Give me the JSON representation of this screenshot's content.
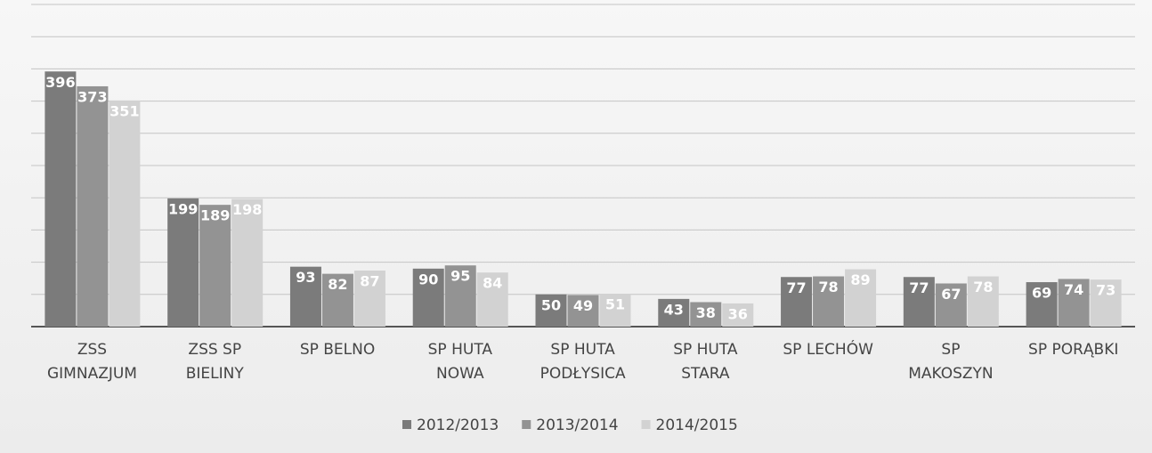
{
  "chart_data": {
    "type": "bar",
    "categories": [
      "ZSS\nGIMNAZJUM",
      "ZSS SP\nBIELINY",
      "SP BELNO",
      "SP HUTA\nNOWA",
      "SP HUTA\nPODŁYSICA",
      "SP HUTA\nSTARA",
      "SP LECHÓW",
      "SP\nMAKOSZYN",
      "SP PORĄBKI"
    ],
    "series": [
      {
        "name": "2012/2013",
        "color": "#7b7b7b",
        "values": [
          396,
          199,
          93,
          90,
          50,
          43,
          77,
          77,
          69
        ]
      },
      {
        "name": "2013/2014",
        "color": "#939393",
        "values": [
          373,
          189,
          82,
          95,
          49,
          38,
          78,
          67,
          74
        ]
      },
      {
        "name": "2014/2015",
        "color": "#d2d2d2",
        "values": [
          351,
          198,
          87,
          84,
          51,
          36,
          89,
          78,
          73
        ]
      }
    ],
    "ylim": [
      0,
      500
    ],
    "yticks": [
      0,
      50,
      100,
      150,
      200,
      250,
      300,
      350,
      400,
      450,
      500
    ],
    "grid": true
  }
}
